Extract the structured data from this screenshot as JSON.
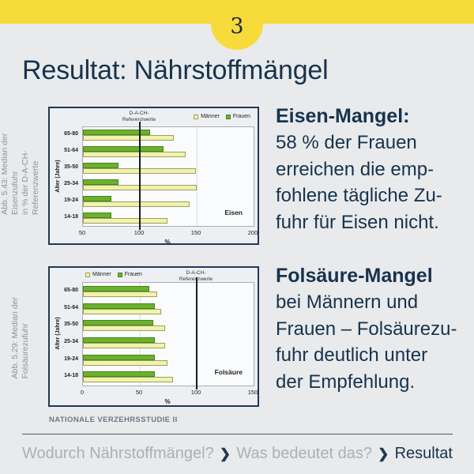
{
  "header": {
    "step_number": "3",
    "title": "Resultat: Nährstoffmängel",
    "accent_color": "#F7DB3B"
  },
  "annotations": {
    "eisen": {
      "heading": "Eisen-Mangel:",
      "body": [
        "58 % der Frauen",
        "erreichen die emp-",
        "fohlene tägliche Zu-",
        "fuhr für Eisen nicht."
      ]
    },
    "folsaeure": {
      "heading": "Folsäure-Mangel",
      "body": [
        "bei Männern und",
        "Frauen – Folsäurezu-",
        "fuhr deutlich unter",
        "der Empfehlung."
      ]
    }
  },
  "figure_captions": {
    "eisen": [
      "Abb. 5.43: Median der Eisenzufuhr",
      "in % der D-A-CH-Referenzwerte"
    ],
    "folsaeure": [
      "Abb. 5.29: Median der",
      "Folsäurezufuhr"
    ]
  },
  "source": "NATIONALE VERZEHRSSTUDIE II",
  "breadcrumb": {
    "separator": "❯",
    "items": [
      {
        "label": "Wodurch Nährstoffmängel?",
        "active": false
      },
      {
        "label": "Was bedeutet das?",
        "active": false
      },
      {
        "label": "Resultat",
        "active": true
      }
    ]
  },
  "chart_data": [
    {
      "type": "bar",
      "orientation": "horizontal",
      "inner_label": "Eisen",
      "categories": [
        "65-80",
        "51-64",
        "35-50",
        "25-34",
        "19-24",
        "14-18"
      ],
      "series": [
        {
          "name": "Männer",
          "color": "#F1F2AE",
          "border": "#9BA05E",
          "values": [
            130,
            140,
            149,
            150,
            144,
            124
          ]
        },
        {
          "name": "Frauen",
          "color": "#6AB22D",
          "border": "#4A831D",
          "values": [
            109,
            121,
            81,
            81,
            75,
            75
          ]
        }
      ],
      "xlabel": "%",
      "ylabel": "Alter (Jahre)",
      "xlim": [
        50,
        200
      ],
      "xticks": [
        50,
        100,
        150,
        200
      ],
      "grid": true,
      "ref_line": {
        "value": 100,
        "label": "D-A-CH-\nReferenzwerte"
      },
      "legend_position": "top-right"
    },
    {
      "type": "bar",
      "orientation": "horizontal",
      "inner_label": "Folsäure",
      "categories": [
        "65-80",
        "51-64",
        "35-50",
        "25-34",
        "19-24",
        "14-18"
      ],
      "series": [
        {
          "name": "Männer",
          "color": "#F1F2AE",
          "border": "#9BA05E",
          "values": [
            65,
            69,
            72,
            72,
            74,
            79
          ]
        },
        {
          "name": "Frauen",
          "color": "#6AB22D",
          "border": "#4A831D",
          "values": [
            58,
            63,
            62,
            63,
            63,
            63
          ]
        }
      ],
      "xlabel": "%",
      "ylabel": "Alter (Jahre)",
      "xlim": [
        0,
        150
      ],
      "xticks": [
        0,
        50,
        100,
        150
      ],
      "grid": true,
      "ref_line": {
        "value": 100,
        "label": "D-A-CH-\nReferenzwerte"
      },
      "legend_position": "top-left"
    }
  ]
}
